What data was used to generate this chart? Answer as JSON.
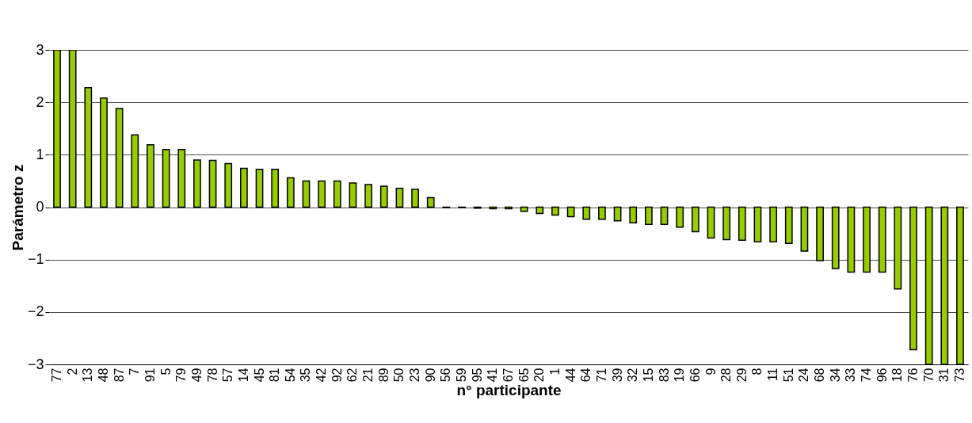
{
  "chart_data": {
    "type": "bar",
    "xlabel": "n° participante",
    "ylabel": "Parámetro z",
    "categories": [
      "77",
      "2",
      "13",
      "48",
      "87",
      "7",
      "91",
      "5",
      "79",
      "49",
      "78",
      "57",
      "14",
      "45",
      "81",
      "54",
      "35",
      "42",
      "92",
      "62",
      "21",
      "89",
      "50",
      "23",
      "90",
      "56",
      "59",
      "95",
      "41",
      "67",
      "65",
      "20",
      "1",
      "44",
      "64",
      "71",
      "39",
      "32",
      "15",
      "83",
      "19",
      "66",
      "9",
      "28",
      "29",
      "8",
      "11",
      "51",
      "24",
      "68",
      "34",
      "33",
      "74",
      "96",
      "18",
      "76",
      "70",
      "31",
      "73"
    ],
    "values": [
      3,
      3,
      2.28,
      2.08,
      1.88,
      1.38,
      1.19,
      1.1,
      1.1,
      0.9,
      0.89,
      0.83,
      0.74,
      0.72,
      0.72,
      0.56,
      0.5,
      0.5,
      0.5,
      0.46,
      0.43,
      0.4,
      0.36,
      0.34,
      0.18,
      -0.01,
      -0.01,
      -0.02,
      -0.03,
      -0.03,
      -0.08,
      -0.12,
      -0.15,
      -0.18,
      -0.23,
      -0.23,
      -0.26,
      -0.3,
      -0.33,
      -0.33,
      -0.38,
      -0.47,
      -0.59,
      -0.62,
      -0.63,
      -0.66,
      -0.66,
      -0.69,
      -0.84,
      -1.02,
      -1.17,
      -1.24,
      -1.24,
      -1.24,
      -1.56,
      -2.72,
      -3,
      -3,
      -3
    ],
    "color": "#99cc00",
    "ylim": [
      -3,
      3
    ],
    "yticks": [
      -3,
      -2,
      -1,
      0,
      1,
      2,
      3
    ],
    "grid": "y"
  }
}
